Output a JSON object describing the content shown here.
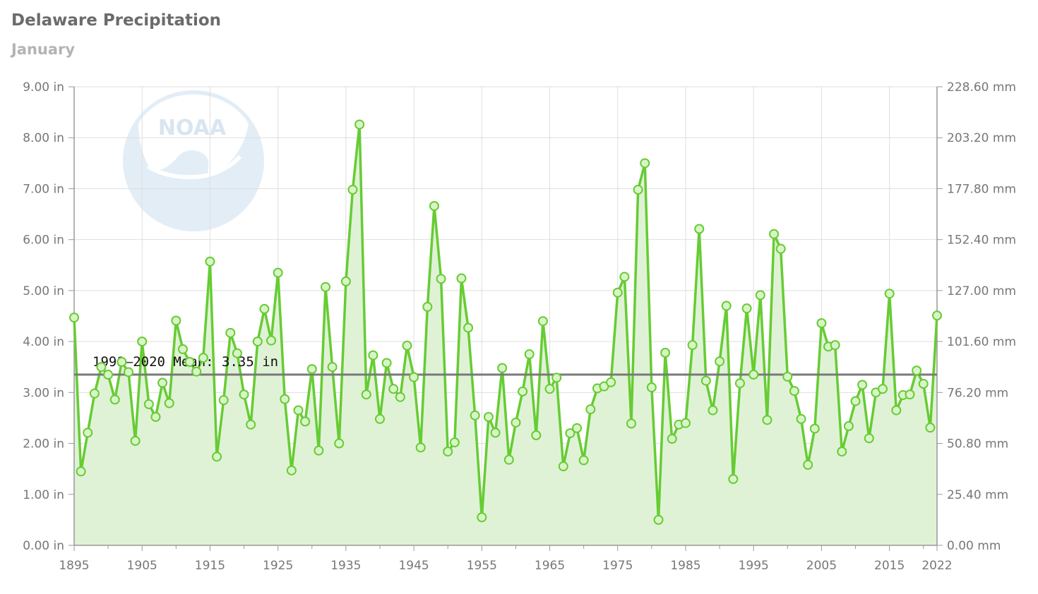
{
  "colors": {
    "series": "#66cc33",
    "area": "#dff2d6",
    "marker_fill": "#d9f5c8",
    "mean_line": "#7a7a7a",
    "grid": "#dedede",
    "axis": "#999999",
    "logo": "#e3edf6"
  },
  "chart_data": {
    "type": "line",
    "title": "Delaware Precipitation",
    "subtitle": "January",
    "logo_icon": "noaa-logo",
    "logo_text": "NOAA",
    "xlim": [
      1895,
      2022
    ],
    "ylim": [
      0,
      9
    ],
    "x_ticks": [
      1895,
      1905,
      1915,
      1925,
      1935,
      1945,
      1955,
      1965,
      1975,
      1985,
      1995,
      2005,
      2015,
      2022
    ],
    "y_ticks_left": [
      "0.00 in",
      "1.00 in",
      "2.00 in",
      "3.00 in",
      "4.00 in",
      "5.00 in",
      "6.00 in",
      "7.00 in",
      "8.00 in",
      "9.00 in"
    ],
    "y_ticks_right": [
      "0.00 mm",
      "25.40 mm",
      "50.80 mm",
      "76.20 mm",
      "101.60 mm",
      "127.00 mm",
      "152.40 mm",
      "177.80 mm",
      "203.20 mm",
      "228.60 mm"
    ],
    "grid": true,
    "mean": {
      "value": 3.35,
      "label": "1991–2020 Mean: 3.35 in"
    },
    "series": [
      {
        "x_start": 1895,
        "values": [
          4.47,
          1.45,
          2.21,
          2.98,
          3.5,
          3.35,
          2.86,
          3.6,
          3.4,
          2.05,
          4.0,
          2.77,
          2.52,
          3.19,
          2.79,
          4.41,
          3.85,
          3.6,
          3.41,
          3.68,
          5.57,
          1.74,
          2.85,
          4.17,
          3.77,
          2.96,
          2.37,
          4.0,
          4.64,
          4.02,
          5.35,
          2.87,
          1.47,
          2.65,
          2.43,
          3.46,
          1.86,
          5.07,
          3.5,
          2.0,
          5.18,
          6.98,
          8.26,
          2.96,
          3.73,
          2.48,
          3.58,
          3.07,
          2.91,
          3.92,
          3.3,
          1.92,
          4.68,
          6.66,
          5.23,
          1.84,
          2.02,
          5.24,
          4.27,
          2.55,
          0.55,
          2.52,
          2.21,
          3.48,
          1.68,
          2.41,
          3.02,
          3.75,
          2.16,
          4.4,
          3.07,
          3.29,
          1.55,
          2.2,
          2.3,
          1.67,
          2.67,
          3.08,
          3.12,
          3.2,
          4.96,
          5.27,
          2.39,
          6.98,
          7.5,
          3.1,
          0.5,
          3.78,
          2.09,
          2.37,
          2.4,
          3.93,
          6.21,
          3.23,
          2.65,
          3.61,
          4.7,
          1.3,
          3.18,
          4.65,
          3.35,
          4.91,
          2.46,
          6.11,
          5.82,
          3.31,
          3.03,
          2.48,
          1.58,
          2.29,
          4.36,
          3.9,
          3.93,
          1.84,
          2.34,
          2.83,
          3.15,
          2.1,
          3.0,
          3.07,
          4.94,
          2.65,
          2.95,
          2.96,
          3.43,
          3.17,
          2.31,
          4.51
        ]
      }
    ]
  }
}
